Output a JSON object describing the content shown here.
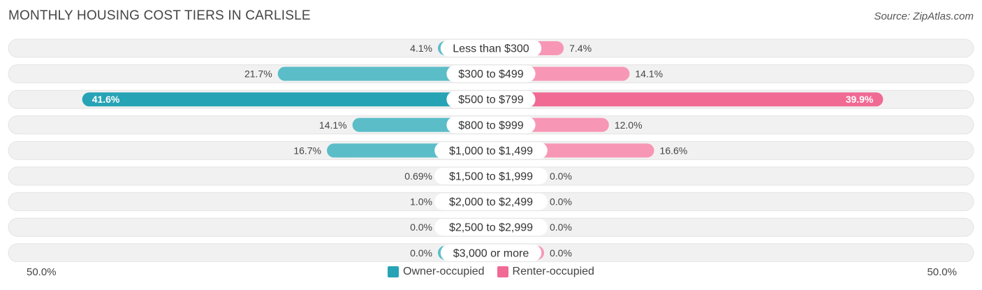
{
  "title": "MONTHLY HOUSING COST TIERS IN CARLISLE",
  "source": "Source: ZipAtlas.com",
  "colors": {
    "owner": "#5bbdc8",
    "owner_strong": "#27a3b6",
    "renter": "#f797b5",
    "renter_strong": "#f06a94",
    "track": "#f1f1f1"
  },
  "chart_data": {
    "type": "bar",
    "orientation": "horizontal-diverging",
    "categories": [
      "Less than $300",
      "$300 to $499",
      "$500 to $799",
      "$800 to $999",
      "$1,000 to $1,499",
      "$1,500 to $1,999",
      "$2,000 to $2,499",
      "$2,500 to $2,999",
      "$3,000 or more"
    ],
    "series": [
      {
        "name": "Owner-occupied",
        "values": [
          4.1,
          21.7,
          41.6,
          14.1,
          16.7,
          0.69,
          1.0,
          0.0,
          0.0
        ],
        "labels": [
          "4.1%",
          "21.7%",
          "41.6%",
          "14.1%",
          "16.7%",
          "0.69%",
          "1.0%",
          "0.0%",
          "0.0%"
        ]
      },
      {
        "name": "Renter-occupied",
        "values": [
          7.4,
          14.1,
          39.9,
          12.0,
          16.6,
          0.0,
          0.0,
          0.0,
          0.0
        ],
        "labels": [
          "7.4%",
          "14.1%",
          "39.9%",
          "12.0%",
          "16.6%",
          "0.0%",
          "0.0%",
          "0.0%",
          "0.0%"
        ]
      }
    ],
    "xlim": [
      -50,
      50
    ],
    "axis_min_label": "50.0%",
    "axis_max_label": "50.0%",
    "legend": "bottom-center"
  }
}
